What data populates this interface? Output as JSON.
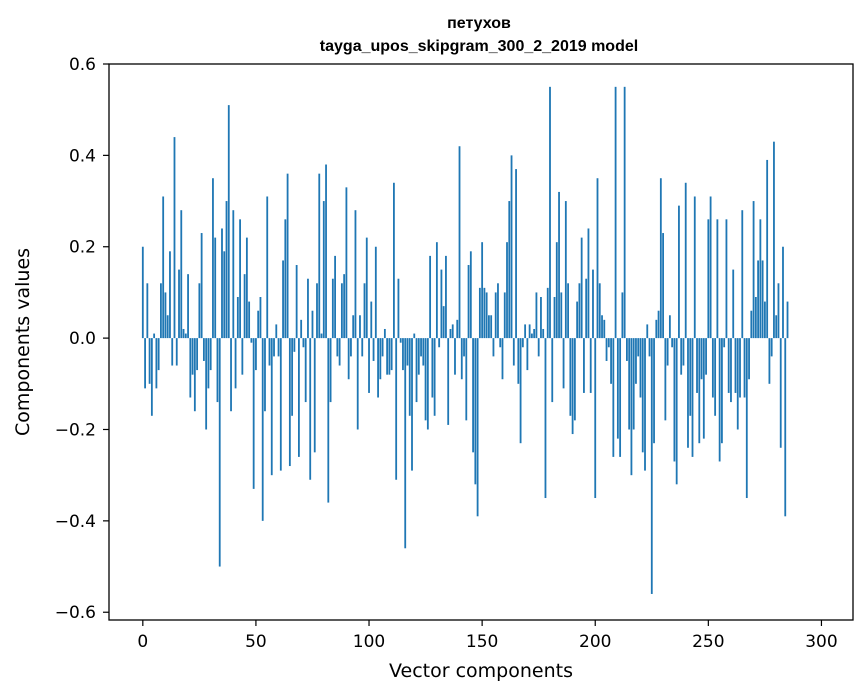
{
  "chart_data": {
    "type": "bar",
    "title": "петухов",
    "subtitle": "tayga_upos_skipgram_300_2_2019 model",
    "xlabel": "Vector components",
    "ylabel": "Components values",
    "xlim": [
      -14.95,
      313.95
    ],
    "ylim": [
      -0.617,
      0.6
    ],
    "xticks": [
      0,
      50,
      100,
      150,
      200,
      250,
      300
    ],
    "xtick_labels": [
      "0",
      "50",
      "100",
      "150",
      "200",
      "250",
      "300"
    ],
    "yticks": [
      -0.6,
      -0.4,
      -0.2,
      0.0,
      0.2,
      0.4,
      0.6
    ],
    "ytick_labels": [
      "−0.6",
      "−0.4",
      "−0.2",
      "0.0",
      "0.2",
      "0.4",
      "0.6"
    ],
    "bar_color": "#1f77b4",
    "values": [
      0.2,
      -0.11,
      0.12,
      -0.1,
      -0.17,
      0.01,
      -0.11,
      -0.07,
      0.12,
      0.31,
      0.1,
      0.05,
      0.19,
      -0.06,
      0.44,
      -0.06,
      0.15,
      0.28,
      0.02,
      0.01,
      0.14,
      -0.13,
      -0.08,
      -0.16,
      -0.07,
      0.12,
      0.23,
      -0.05,
      -0.2,
      -0.11,
      -0.07,
      0.35,
      0.22,
      -0.14,
      -0.5,
      0.24,
      0.19,
      0.3,
      0.51,
      -0.16,
      0.28,
      -0.11,
      0.09,
      0.26,
      -0.08,
      0.14,
      0.22,
      0.08,
      -0.01,
      -0.33,
      -0.07,
      0.06,
      0.09,
      -0.4,
      -0.16,
      0.31,
      -0.06,
      -0.3,
      -0.04,
      0.03,
      -0.04,
      -0.29,
      0.17,
      0.26,
      0.36,
      -0.28,
      -0.17,
      -0.03,
      0.16,
      -0.26,
      0.04,
      -0.02,
      -0.14,
      0.13,
      -0.31,
      0.06,
      -0.25,
      0.12,
      0.36,
      0.01,
      0.3,
      0.38,
      -0.36,
      -0.14,
      0.13,
      0.18,
      -0.04,
      -0.06,
      0.12,
      0.14,
      0.33,
      -0.09,
      -0.04,
      0.05,
      0.28,
      -0.2,
      0.05,
      -0.04,
      0.12,
      0.22,
      -0.12,
      0.08,
      -0.05,
      0.2,
      -0.13,
      -0.09,
      -0.04,
      0.02,
      -0.08,
      -0.08,
      -0.07,
      0.34,
      -0.31,
      0.13,
      -0.01,
      -0.07,
      -0.46,
      -0.06,
      -0.17,
      -0.29,
      0.01,
      -0.14,
      -0.08,
      -0.04,
      -0.06,
      -0.18,
      -0.2,
      0.18,
      -0.13,
      -0.17,
      0.21,
      -0.02,
      0.15,
      0.07,
      0.18,
      -0.19,
      0.02,
      0.03,
      -0.08,
      0.04,
      0.42,
      -0.09,
      -0.04,
      -0.18,
      0.16,
      0.19,
      -0.25,
      -0.32,
      -0.39,
      0.11,
      0.21,
      0.11,
      0.1,
      0.05,
      0.05,
      -0.04,
      0.1,
      0.12,
      -0.02,
      -0.09,
      0.1,
      0.21,
      0.3,
      0.4,
      -0.06,
      0.37,
      -0.1,
      -0.23,
      -0.02,
      0.03,
      -0.07,
      0.03,
      0.01,
      0.02,
      0.1,
      -0.04,
      0.09,
      0.02,
      -0.35,
      0.11,
      0.55,
      -0.14,
      0.09,
      0.21,
      0.32,
      0.1,
      -0.11,
      0.3,
      0.12,
      -0.17,
      -0.21,
      -0.18,
      0.08,
      0.12,
      0.22,
      -0.12,
      0.13,
      0.24,
      -0.12,
      0.15,
      -0.35,
      0.35,
      0.12,
      0.05,
      0.04,
      -0.05,
      -0.02,
      -0.1,
      -0.26,
      0.55,
      -0.22,
      -0.26,
      0.1,
      0.55,
      -0.05,
      -0.2,
      -0.3,
      -0.2,
      -0.1,
      -0.04,
      -0.13,
      -0.25,
      -0.29,
      0.03,
      -0.04,
      -0.56,
      -0.23,
      0.04,
      0.06,
      0.35,
      0.23,
      -0.18,
      -0.06,
      0.05,
      -0.02,
      -0.27,
      -0.32,
      0.29,
      -0.08,
      -0.06,
      0.34,
      -0.24,
      -0.17,
      -0.26,
      0.31,
      -0.12,
      -0.23,
      -0.09,
      -0.22,
      -0.08,
      0.26,
      0.31,
      -0.13,
      -0.17,
      0.26,
      -0.27,
      -0.23,
      -0.02,
      0.26,
      -0.12,
      -0.14,
      0.15,
      -0.12,
      -0.2,
      -0.13,
      0.28,
      -0.13,
      -0.35,
      -0.09,
      0.06,
      0.3,
      0.09,
      0.17,
      0.26,
      0.17,
      0.08,
      0.39,
      -0.1,
      -0.04,
      0.43,
      0.05,
      0.12,
      -0.24,
      0.2,
      -0.39,
      0.08
    ]
  }
}
